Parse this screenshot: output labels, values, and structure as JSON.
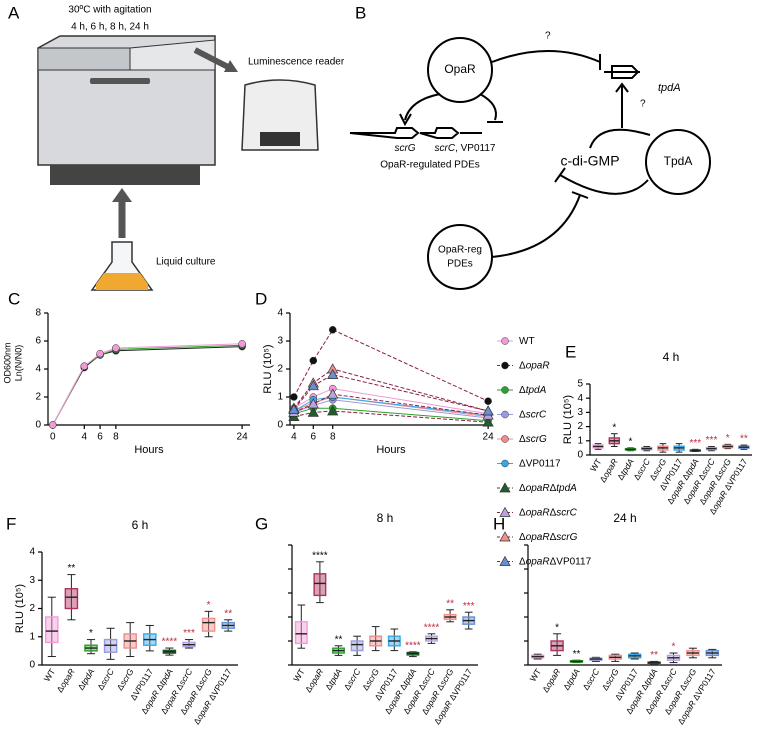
{
  "panel_labels": [
    "A",
    "B",
    "C",
    "D",
    "E",
    "F",
    "G",
    "H"
  ],
  "illustration": {
    "caption": [
      "30ºC with agitation",
      "4 h, 6 h, 8 h, 24 h"
    ],
    "reader": "Luminescence reader",
    "culture": "Liquid culture"
  },
  "diagram": {
    "opar": "OpaR",
    "tpda_protein": "TpdA",
    "cdigmp": "c-di-GMP",
    "tpda_gene": "tpdA",
    "scrg": "scrG",
    "scrc": "scrC, VP0117",
    "pde_caption": "OpaR-regulated PDEs",
    "pde_node": [
      "OpaR-reg",
      "PDEs"
    ],
    "questions": [
      "?",
      "?"
    ]
  },
  "chart_data": [
    {
      "type": "line",
      "ylabel": [
        "OD600nm",
        "Ln(N/N0)"
      ],
      "xlabel": "Hours",
      "x": [
        0,
        4,
        6,
        8,
        24
      ],
      "xlim": [
        -0.6,
        25
      ],
      "xticks": [
        0,
        4,
        6,
        8,
        24
      ],
      "ylim": [
        0,
        8
      ],
      "yticks": [
        0,
        2,
        4,
        6,
        8
      ],
      "series": [
        {
          "color": "#222222",
          "marker": "circle",
          "values": [
            0,
            4.1,
            5.0,
            5.3,
            5.6
          ]
        },
        {
          "color": "#2ca02c",
          "marker": "circle",
          "values": [
            0,
            4.2,
            5.0,
            5.4,
            5.7
          ]
        },
        {
          "color": "#f29ad8",
          "marker": "circle",
          "values": [
            0,
            4.2,
            5.1,
            5.5,
            5.8
          ]
        }
      ]
    },
    {
      "type": "line",
      "ylabel": "RLU (10⁵)",
      "xlabel": "Hours",
      "x": [
        4,
        6,
        8,
        24
      ],
      "xlim": [
        3.6,
        24.4
      ],
      "xticks": [
        4,
        6,
        8,
        24
      ],
      "ylim": [
        0,
        4
      ],
      "yticks": [
        0,
        1,
        2,
        3,
        4
      ],
      "series": [
        {
          "name": "WT",
          "color": "#f29ad8",
          "marker": "circle",
          "dashed": false,
          "values": [
            0.6,
            1.0,
            1.3,
            0.4
          ]
        },
        {
          "name": "ΔopaR",
          "color": "#111111",
          "marker": "circle",
          "dashed": true,
          "values": [
            1.0,
            2.3,
            3.4,
            0.85
          ]
        },
        {
          "name": "ΔtpdA",
          "color": "#2ca02c",
          "marker": "circle",
          "dashed": false,
          "values": [
            0.4,
            0.6,
            0.6,
            0.15
          ]
        },
        {
          "name": "ΔscrC",
          "color": "#9b9be0",
          "marker": "circle",
          "dashed": false,
          "values": [
            0.45,
            0.7,
            0.9,
            0.25
          ]
        },
        {
          "name": "ΔscrG",
          "color": "#f08c8c",
          "marker": "circle",
          "dashed": false,
          "values": [
            0.5,
            0.8,
            1.0,
            0.3
          ]
        },
        {
          "name": "ΔVP0117",
          "color": "#33a8e8",
          "marker": "circle",
          "dashed": false,
          "values": [
            0.5,
            0.9,
            1.0,
            0.35
          ]
        },
        {
          "name": "ΔopaRΔtpdA",
          "color": "#1f5e2a",
          "marker": "triangle",
          "dashed": true,
          "values": [
            0.3,
            0.45,
            0.5,
            0.1
          ]
        },
        {
          "name": "ΔopaRΔscrC",
          "color": "#b8a4e0",
          "marker": "triangle",
          "dashed": true,
          "values": [
            0.45,
            0.75,
            1.1,
            0.35
          ]
        },
        {
          "name": "ΔopaRΔscrG",
          "color": "#f0908a",
          "marker": "triangle",
          "dashed": true,
          "values": [
            0.6,
            1.5,
            2.0,
            0.5
          ]
        },
        {
          "name": "ΔopaRΔVP0117",
          "color": "#6a8fd0",
          "marker": "triangle",
          "dashed": true,
          "values": [
            0.55,
            1.4,
            1.8,
            0.5
          ]
        }
      ]
    },
    {
      "type": "box",
      "title": "4 h",
      "ylabel": "RLU (10⁵)",
      "ylim": [
        0,
        5
      ],
      "yticks": [
        0,
        1,
        2,
        3,
        4,
        5
      ],
      "ytick_labels": true,
      "categories": [
        "WT",
        "ΔopaR",
        "ΔtpdA",
        "ΔscrC",
        "ΔscrG",
        "ΔVP0117",
        "ΔopaR ΔtpdA",
        "ΔopaR ΔscrC",
        "ΔopaR ΔscrG",
        "ΔopaR ΔVP0117"
      ],
      "colors": [
        "#f29ad8",
        "#b03060",
        "#2ca02c",
        "#9b9be0",
        "#f08c8c",
        "#33a8e8",
        "#1f5e2a",
        "#b8a4e0",
        "#f0908a",
        "#6a8fd0"
      ],
      "boxes": [
        {
          "min": 0.4,
          "q1": 0.5,
          "median": 0.6,
          "q3": 0.7,
          "max": 0.8
        },
        {
          "min": 0.6,
          "q1": 0.8,
          "median": 1.0,
          "q3": 1.2,
          "max": 1.5
        },
        {
          "min": 0.3,
          "q1": 0.35,
          "median": 0.4,
          "q3": 0.45,
          "max": 0.5
        },
        {
          "min": 0.3,
          "q1": 0.38,
          "median": 0.45,
          "q3": 0.52,
          "max": 0.6
        },
        {
          "min": 0.2,
          "q1": 0.35,
          "median": 0.5,
          "q3": 0.62,
          "max": 0.8
        },
        {
          "min": 0.2,
          "q1": 0.35,
          "median": 0.5,
          "q3": 0.62,
          "max": 0.8
        },
        {
          "min": 0.25,
          "q1": 0.28,
          "median": 0.3,
          "q3": 0.35,
          "max": 0.4
        },
        {
          "min": 0.3,
          "q1": 0.38,
          "median": 0.45,
          "q3": 0.52,
          "max": 0.6
        },
        {
          "min": 0.45,
          "q1": 0.52,
          "median": 0.6,
          "q3": 0.68,
          "max": 0.75
        },
        {
          "min": 0.4,
          "q1": 0.48,
          "median": 0.55,
          "q3": 0.62,
          "max": 0.7
        }
      ],
      "annotations": [
        null,
        "*",
        "*",
        null,
        null,
        null,
        "***",
        "***",
        "*",
        "**"
      ],
      "annotation_colors": [
        null,
        "#000000",
        "#000000",
        null,
        null,
        null,
        "#c0283c",
        "#c0283c",
        "#c0283c",
        "#c0283c"
      ]
    },
    {
      "type": "box",
      "title": "6 h",
      "ylabel": "RLU (10⁵)",
      "ylim": [
        0,
        4
      ],
      "yticks": [
        0,
        1,
        2,
        3,
        4
      ],
      "ytick_labels": true,
      "categories": [
        "WT",
        "ΔopaR",
        "ΔtpdA",
        "ΔscrC",
        "ΔscrG",
        "ΔVP0117",
        "ΔopaR ΔtpdA",
        "ΔopaR ΔscrC",
        "ΔopaR ΔscrG",
        "ΔopaR ΔVP0117"
      ],
      "colors": [
        "#f29ad8",
        "#b03060",
        "#2ca02c",
        "#9b9be0",
        "#f08c8c",
        "#33a8e8",
        "#1f5e2a",
        "#b8a4e0",
        "#f0908a",
        "#6a8fd0"
      ],
      "boxes": [
        {
          "min": 0.3,
          "q1": 0.8,
          "median": 1.2,
          "q3": 1.7,
          "max": 2.4
        },
        {
          "min": 1.6,
          "q1": 2.0,
          "median": 2.4,
          "q3": 2.7,
          "max": 3.2
        },
        {
          "min": 0.4,
          "q1": 0.5,
          "median": 0.6,
          "q3": 0.7,
          "max": 0.9
        },
        {
          "min": 0.2,
          "q1": 0.45,
          "median": 0.7,
          "q3": 0.9,
          "max": 1.3
        },
        {
          "min": 0.3,
          "q1": 0.6,
          "median": 0.85,
          "q3": 1.1,
          "max": 1.5
        },
        {
          "min": 0.5,
          "q1": 0.7,
          "median": 0.9,
          "q3": 1.1,
          "max": 1.4
        },
        {
          "min": 0.35,
          "q1": 0.42,
          "median": 0.47,
          "q3": 0.52,
          "max": 0.6
        },
        {
          "min": 0.6,
          "q1": 0.65,
          "median": 0.72,
          "q3": 0.8,
          "max": 0.9
        },
        {
          "min": 1.0,
          "q1": 1.2,
          "median": 1.5,
          "q3": 1.65,
          "max": 1.9
        },
        {
          "min": 1.2,
          "q1": 1.3,
          "median": 1.4,
          "q3": 1.5,
          "max": 1.6
        }
      ],
      "annotations": [
        null,
        "**",
        "*",
        null,
        null,
        null,
        "****",
        "***",
        "*",
        "**"
      ],
      "annotation_colors": [
        null,
        "#000000",
        "#000000",
        null,
        null,
        null,
        "#c0283c",
        "#c0283c",
        "#c0283c",
        "#c0283c"
      ]
    },
    {
      "type": "box",
      "title": "8 h",
      "ylim": [
        0,
        5
      ],
      "yticks": [
        0,
        1,
        2,
        3,
        4,
        5
      ],
      "ytick_labels": false,
      "categories": [
        "WT",
        "ΔopaR",
        "ΔtpdA",
        "ΔscrC",
        "ΔscrG",
        "ΔVP0117",
        "ΔopaR ΔtpdA",
        "ΔopaR ΔscrC",
        "ΔopaR ΔscrG",
        "ΔopaR ΔVP0117"
      ],
      "colors": [
        "#f29ad8",
        "#b03060",
        "#2ca02c",
        "#9b9be0",
        "#f08c8c",
        "#33a8e8",
        "#1f5e2a",
        "#b8a4e0",
        "#f0908a",
        "#6a8fd0"
      ],
      "boxes": [
        {
          "min": 0.7,
          "q1": 0.9,
          "median": 1.3,
          "q3": 1.8,
          "max": 2.5
        },
        {
          "min": 2.6,
          "q1": 2.9,
          "median": 3.4,
          "q3": 3.8,
          "max": 4.3
        },
        {
          "min": 0.4,
          "q1": 0.5,
          "median": 0.6,
          "q3": 0.7,
          "max": 0.8
        },
        {
          "min": 0.4,
          "q1": 0.6,
          "median": 0.85,
          "q3": 1.0,
          "max": 1.2
        },
        {
          "min": 0.6,
          "q1": 0.8,
          "median": 1.0,
          "q3": 1.2,
          "max": 1.6
        },
        {
          "min": 0.6,
          "q1": 0.8,
          "median": 1.0,
          "q3": 1.2,
          "max": 1.5
        },
        {
          "min": 0.35,
          "q1": 0.42,
          "median": 0.48,
          "q3": 0.52,
          "max": 0.55
        },
        {
          "min": 0.9,
          "q1": 1.0,
          "median": 1.1,
          "q3": 1.2,
          "max": 1.3
        },
        {
          "min": 1.8,
          "q1": 1.9,
          "median": 2.0,
          "q3": 2.1,
          "max": 2.3
        },
        {
          "min": 1.5,
          "q1": 1.7,
          "median": 1.85,
          "q3": 2.0,
          "max": 2.2
        }
      ],
      "annotations": [
        null,
        "****",
        "**",
        null,
        null,
        null,
        "****",
        "****",
        "**",
        "***"
      ],
      "annotation_colors": [
        null,
        "#000000",
        "#000000",
        null,
        null,
        null,
        "#c0283c",
        "#c0283c",
        "#c0283c",
        "#c0283c"
      ]
    },
    {
      "type": "box",
      "title": "24 h",
      "ylim": [
        0,
        5
      ],
      "yticks": [
        0,
        1,
        2,
        3,
        4,
        5
      ],
      "ytick_labels": false,
      "categories": [
        "WT",
        "ΔopaR",
        "ΔtpdA",
        "ΔscrC",
        "ΔscrG",
        "ΔVP0117",
        "ΔopaR ΔtpdA",
        "ΔopaR ΔscrC",
        "ΔopaR ΔscrG",
        "ΔopaR ΔVP0117"
      ],
      "colors": [
        "#f29ad8",
        "#b03060",
        "#2ca02c",
        "#9b9be0",
        "#f08c8c",
        "#33a8e8",
        "#1f5e2a",
        "#b8a4e0",
        "#f0908a",
        "#6a8fd0"
      ],
      "boxes": [
        {
          "min": 0.25,
          "q1": 0.3,
          "median": 0.35,
          "q3": 0.4,
          "max": 0.45
        },
        {
          "min": 0.4,
          "q1": 0.6,
          "median": 0.8,
          "q3": 1.0,
          "max": 1.3
        },
        {
          "min": 0.1,
          "q1": 0.12,
          "median": 0.15,
          "q3": 0.18,
          "max": 0.2
        },
        {
          "min": 0.15,
          "q1": 0.2,
          "median": 0.25,
          "q3": 0.28,
          "max": 0.32
        },
        {
          "min": 0.15,
          "q1": 0.25,
          "median": 0.32,
          "q3": 0.4,
          "max": 0.45
        },
        {
          "min": 0.25,
          "q1": 0.3,
          "median": 0.38,
          "q3": 0.45,
          "max": 0.5
        },
        {
          "min": 0.05,
          "q1": 0.07,
          "median": 0.1,
          "q3": 0.12,
          "max": 0.15
        },
        {
          "min": 0.1,
          "q1": 0.2,
          "median": 0.3,
          "q3": 0.4,
          "max": 0.5
        },
        {
          "min": 0.3,
          "q1": 0.4,
          "median": 0.5,
          "q3": 0.6,
          "max": 0.7
        },
        {
          "min": 0.3,
          "q1": 0.4,
          "median": 0.5,
          "q3": 0.6,
          "max": 0.65
        }
      ],
      "annotations": [
        null,
        "*",
        "**",
        null,
        null,
        null,
        "**",
        "*",
        null,
        null
      ],
      "annotation_colors": [
        null,
        "#000000",
        "#000000",
        null,
        null,
        null,
        "#c0283c",
        "#c0283c",
        null,
        null
      ]
    }
  ]
}
